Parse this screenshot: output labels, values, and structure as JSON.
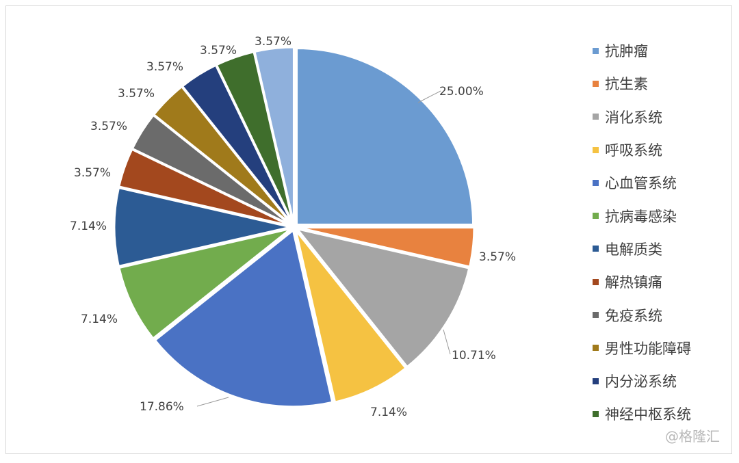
{
  "chart_data": {
    "type": "pie",
    "title": "",
    "legend_position": "right",
    "slices": [
      {
        "name": "抗肿瘤",
        "value": 25.0,
        "label": "25.00%",
        "color": "#6b9bd1"
      },
      {
        "name": "抗生素",
        "value": 3.57,
        "label": "3.57%",
        "color": "#e8823f"
      },
      {
        "name": "消化系统",
        "value": 10.71,
        "label": "10.71%",
        "color": "#a5a5a5"
      },
      {
        "name": "呼吸系统",
        "value": 7.14,
        "label": "7.14%",
        "color": "#f5c242"
      },
      {
        "name": "心血管系统",
        "value": 17.86,
        "label": "17.86%",
        "color": "#4a72c4"
      },
      {
        "name": "抗病毒感染",
        "value": 7.14,
        "label": "7.14%",
        "color": "#72ac4d"
      },
      {
        "name": "电解质类",
        "value": 7.14,
        "label": "7.14%",
        "color": "#2c5b94"
      },
      {
        "name": "解热镇痛",
        "value": 3.57,
        "label": "3.57%",
        "color": "#a3481e"
      },
      {
        "name": "免疫系统",
        "value": 3.57,
        "label": "3.57%",
        "color": "#6b6b6b"
      },
      {
        "name": "男性功能障碍",
        "value": 3.57,
        "label": "3.57%",
        "color": "#a07a1b"
      },
      {
        "name": "内分泌系统",
        "value": 3.57,
        "label": "3.57%",
        "color": "#243f7d"
      },
      {
        "name": "神经中枢系统",
        "value": 3.57,
        "label": "3.57%",
        "color": "#3f6e2c"
      },
      {
        "name": "",
        "value": 3.57,
        "label": "3.57%",
        "color": "#8fb0dc"
      }
    ]
  },
  "watermark": "@格隆汇"
}
